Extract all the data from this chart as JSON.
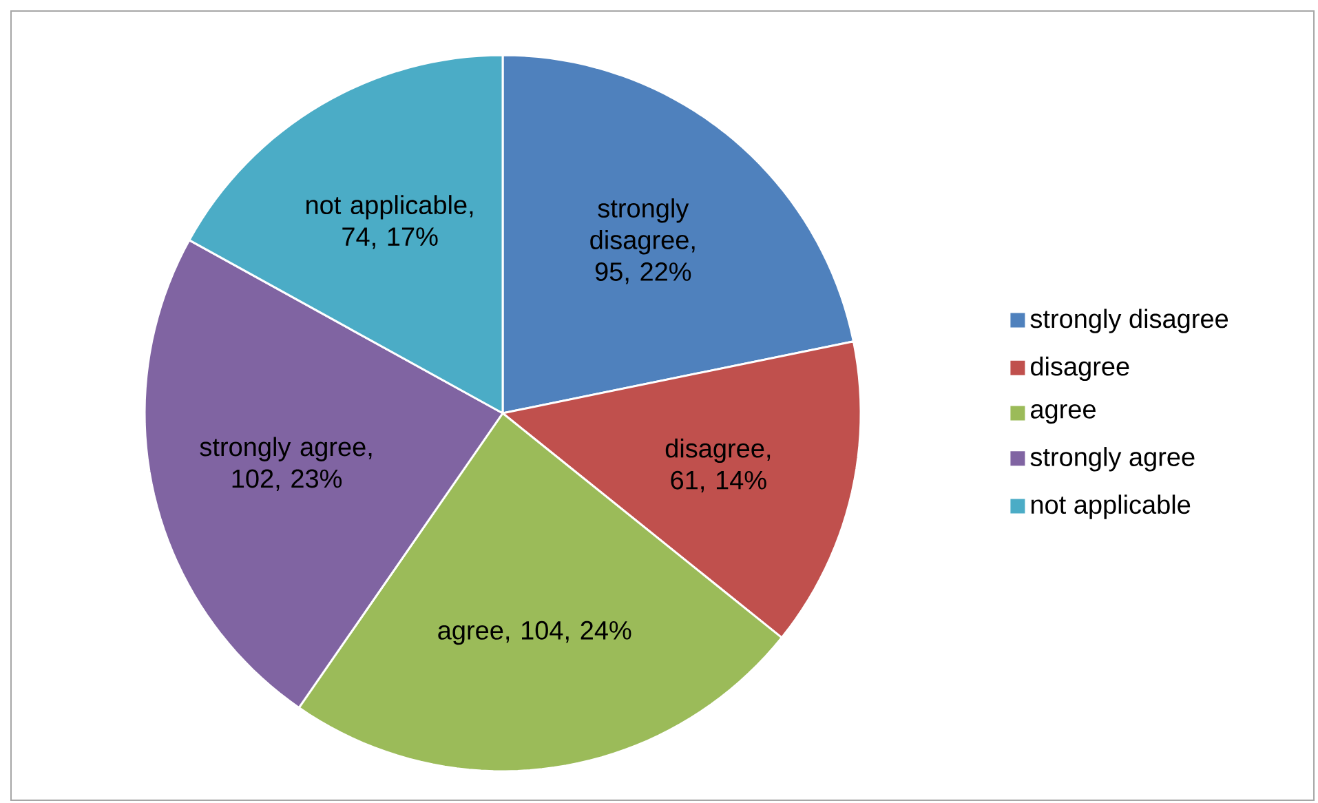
{
  "chart_data": {
    "type": "pie",
    "categories": [
      "strongly disagree",
      "disagree",
      "agree",
      "strongly agree",
      "not applicable"
    ],
    "values": [
      95,
      61,
      104,
      102,
      74
    ],
    "colors": [
      "#4f81bd",
      "#c0504d",
      "#9bbb59",
      "#8064a2",
      "#4bacc6"
    ],
    "value_labels": [
      "strongly disagree, 95, 22%",
      "disagree, 61, 14%",
      "agree, 104, 24%",
      "strongly agree, 102, 23%",
      "not applicable, 74, 17%"
    ],
    "legend": "right"
  }
}
